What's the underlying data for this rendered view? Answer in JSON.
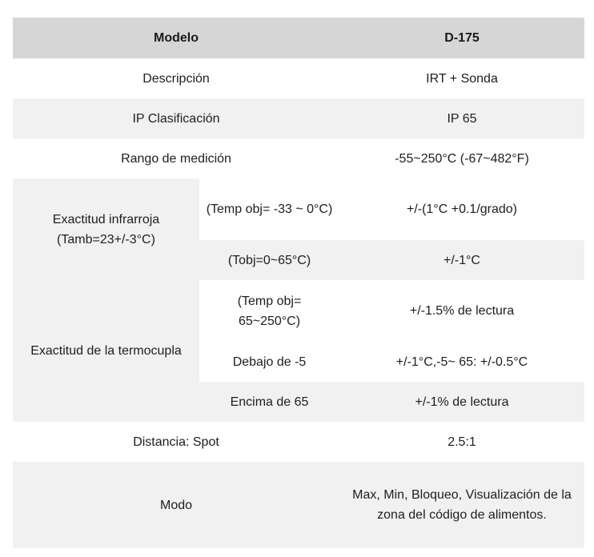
{
  "table": {
    "header": {
      "label": "Modelo",
      "value": "D-175"
    },
    "description": {
      "label": "Descripción",
      "value": "IRT + Sonda"
    },
    "ip": {
      "label": "IP Clasificación",
      "value": "IP 65"
    },
    "range": {
      "label": "Rango de medición",
      "value": "-55~250°C (-67~482°F)"
    },
    "ir_accuracy": {
      "label": "Exactitud infrarroja (Tamb=23+/-3°C)",
      "rows": [
        {
          "condition": "(Temp obj= -33 ~ 0°C)",
          "value": "+/-(1°C +0.1/grado)"
        },
        {
          "condition": "(Tobj=0~65°C)",
          "value": "+/-1°C"
        }
      ]
    },
    "tc_accuracy": {
      "label": "Exactitud de la termocupla",
      "rows": [
        {
          "condition": "(Temp obj= 65~250°C)",
          "value": "+/-1.5% de lectura"
        },
        {
          "condition": "Debajo de -5",
          "value": "+/-1°C,-5~ 65: +/-0.5°C"
        },
        {
          "condition": "Encima de 65",
          "value": "+/-1% de lectura"
        }
      ]
    },
    "spot": {
      "label": "Distancia: Spot",
      "value": "2.5:1"
    },
    "mode": {
      "label": "Modo",
      "value": "Max, Min, Bloqueo, Visualización de la zona del código de alimentos."
    }
  }
}
